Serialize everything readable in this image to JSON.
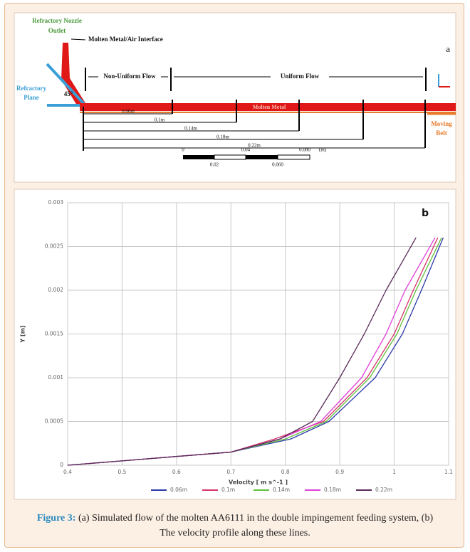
{
  "diagram": {
    "nozzle_label": [
      "Refractory Nozzle",
      "Outlet"
    ],
    "interface_label": "Molten Metal/Air Interface",
    "panel_label": "a",
    "non_uniform_label": "Non-Uniform Flow",
    "uniform_label": "Uniform Flow",
    "plane_label": [
      "Refractory",
      "Plane"
    ],
    "angle_label": "45°",
    "metal_label": "Molten Metal",
    "distances": [
      "0.06m",
      "0.1m",
      "0.14m",
      "0.18m",
      "0.22m"
    ],
    "belt_label": [
      "Moving",
      "Belt"
    ],
    "scale_top": [
      "0",
      "0.04",
      "0.080"
    ],
    "scale_unit": "(m)",
    "scale_bottom": [
      "0.02",
      "0.060"
    ]
  },
  "chart_data": {
    "type": "line",
    "panel_label": "b",
    "xlabel": "Velocity [ m s^-1 ]",
    "ylabel": "Y [m]",
    "xlim": [
      0.4,
      1.1
    ],
    "ylim": [
      0,
      0.003
    ],
    "xticks": [
      0.4,
      0.5,
      0.6,
      0.7,
      0.8,
      0.9,
      1,
      1.1
    ],
    "yticks": [
      0,
      0.0005,
      0.001,
      0.0015,
      0.002,
      0.0025,
      0.003
    ],
    "grid": true,
    "series": [
      {
        "name": "0.06m",
        "color": "#2b3aa8",
        "x": [
          0.4,
          0.5,
          0.6,
          0.7,
          0.81,
          0.88,
          0.965,
          1.015,
          1.05,
          1.09
        ],
        "values": [
          0,
          5e-05,
          0.0001,
          0.00015,
          0.0003,
          0.0005,
          0.001,
          0.0015,
          0.002,
          0.0026
        ]
      },
      {
        "name": "0.1m",
        "color": "#d6336c",
        "x": [
          0.4,
          0.5,
          0.6,
          0.7,
          0.78,
          0.87,
          0.95,
          1.0,
          1.035,
          1.08
        ],
        "values": [
          0,
          5e-05,
          0.0001,
          0.00015,
          0.0003,
          0.0005,
          0.001,
          0.0015,
          0.002,
          0.0026
        ]
      },
      {
        "name": "0.14m",
        "color": "#5fbf3a",
        "x": [
          0.4,
          0.5,
          0.6,
          0.7,
          0.8,
          0.875,
          0.955,
          1.005,
          1.04,
          1.087
        ],
        "values": [
          0,
          5e-05,
          0.0001,
          0.00015,
          0.0003,
          0.0005,
          0.001,
          0.0015,
          0.002,
          0.0026
        ]
      },
      {
        "name": "0.18m",
        "color": "#e040d8",
        "x": [
          0.4,
          0.5,
          0.6,
          0.7,
          0.79,
          0.865,
          0.94,
          0.985,
          1.02,
          1.075
        ],
        "values": [
          0,
          5e-05,
          0.0001,
          0.00015,
          0.0003,
          0.0005,
          0.001,
          0.0015,
          0.002,
          0.0026
        ]
      },
      {
        "name": "0.22m",
        "color": "#5a2a5a",
        "x": [
          0.4,
          0.5,
          0.6,
          0.7,
          0.79,
          0.85,
          0.9,
          0.945,
          0.985,
          1.04
        ],
        "values": [
          0,
          5e-05,
          0.0001,
          0.00015,
          0.0003,
          0.0005,
          0.001,
          0.0015,
          0.002,
          0.0026
        ]
      }
    ]
  },
  "caption": {
    "label": "Figure 3:",
    "text": "(a) Simulated flow of the molten AA6111 in the double impingement feeding system, (b) The velocity profile along these lines."
  }
}
